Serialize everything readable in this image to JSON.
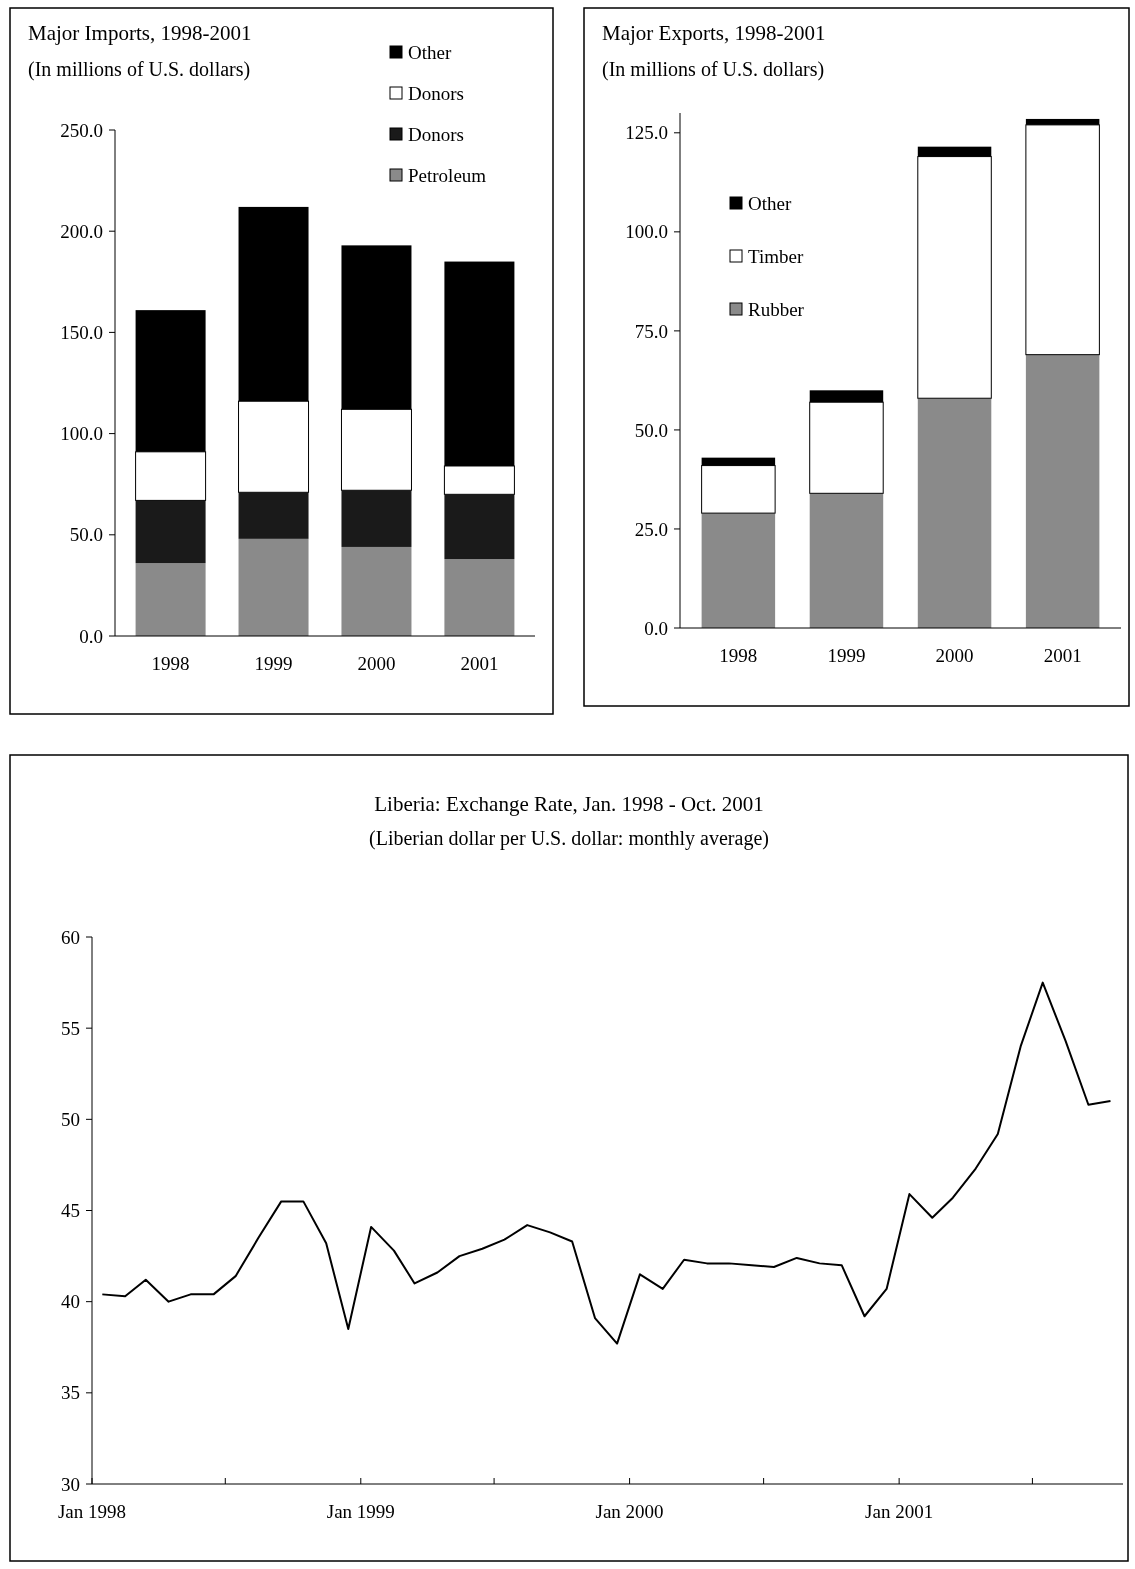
{
  "chart_data": [
    {
      "type": "bar",
      "title": "Major Imports, 1998-2001",
      "subtitle": "(In millions of U.S. dollars)",
      "categories": [
        "1998",
        "1999",
        "2000",
        "2001"
      ],
      "stacked": true,
      "legend": "top right",
      "series": [
        {
          "name": "Petroleum",
          "color": "#8a8a8a",
          "values": [
            36,
            48,
            44,
            38
          ]
        },
        {
          "name": "Donors",
          "color": "#1a1a1a",
          "values": [
            31,
            23,
            28,
            32
          ]
        },
        {
          "name": "Donors",
          "color": "#ffffff",
          "values": [
            24,
            45,
            40,
            14
          ]
        },
        {
          "name": "Other",
          "color": "#000000",
          "values": [
            70,
            96,
            81,
            101
          ]
        }
      ],
      "ylim": [
        0,
        250
      ],
      "yticks": [
        {
          "value": 0,
          "label": "0.0"
        },
        {
          "value": 50,
          "label": "50.0"
        },
        {
          "value": 100,
          "label": "100.0"
        },
        {
          "value": 150,
          "label": "150.0"
        },
        {
          "value": 200,
          "label": "200.0"
        },
        {
          "value": 250,
          "label": "250.0"
        }
      ]
    },
    {
      "type": "bar",
      "title": "Major Exports, 1998-2001",
      "subtitle": "(In millions of U.S. dollars)",
      "categories": [
        "1998",
        "1999",
        "2000",
        "2001"
      ],
      "stacked": true,
      "legend": "top left",
      "series": [
        {
          "name": "Rubber",
          "color": "#8a8a8a",
          "values": [
            29,
            34,
            58,
            69
          ]
        },
        {
          "name": "Timber",
          "color": "#ffffff",
          "values": [
            12,
            23,
            61,
            58
          ]
        },
        {
          "name": "Other",
          "color": "#000000",
          "values": [
            2,
            3,
            2.5,
            1.5
          ]
        }
      ],
      "ylim": [
        0,
        130
      ],
      "yticks": [
        {
          "value": 0,
          "label": "0.0"
        },
        {
          "value": 25,
          "label": "25.0"
        },
        {
          "value": 50,
          "label": "50.0"
        },
        {
          "value": 75,
          "label": "75.0"
        },
        {
          "value": 100,
          "label": "100.0"
        },
        {
          "value": 125,
          "label": "125.0"
        }
      ]
    },
    {
      "type": "line",
      "title": "Liberia: Exchange Rate, Jan. 1998 - Oct. 2001",
      "subtitle": "(Liberian dollar per U.S. dollar: monthly average)",
      "color": "#000000",
      "x": [
        "1998-01-15",
        "1998-02-15",
        "1998-03-15",
        "1998-04-15",
        "1998-05-15",
        "1998-06-15",
        "1998-07-15",
        "1998-08-15",
        "1998-09-15",
        "1998-10-15",
        "1998-11-15",
        "1998-12-15",
        "1999-01-15",
        "1999-02-15",
        "1999-03-15",
        "1999-04-15",
        "1999-05-15",
        "1999-06-15",
        "1999-07-15",
        "1999-08-15",
        "1999-09-15",
        "1999-10-15",
        "1999-11-15",
        "1999-12-15",
        "2000-01-15",
        "2000-02-15",
        "2000-03-15",
        "2000-04-15",
        "2000-05-15",
        "2000-06-15",
        "2000-07-15",
        "2000-08-15",
        "2000-09-15",
        "2000-10-15",
        "2000-11-15",
        "2000-12-15",
        "2001-01-15",
        "2001-02-15",
        "2001-03-15",
        "2001-04-15",
        "2001-05-15",
        "2001-06-15",
        "2001-07-15",
        "2001-08-15",
        "2001-09-15",
        "2001-10-15"
      ],
      "values": [
        40.4,
        40.3,
        41.2,
        40.0,
        40.4,
        40.4,
        41.4,
        43.5,
        45.5,
        45.5,
        43.2,
        38.5,
        44.1,
        42.8,
        41.0,
        41.6,
        42.5,
        42.9,
        43.4,
        44.2,
        43.8,
        43.3,
        39.1,
        37.7,
        41.5,
        40.7,
        42.3,
        42.1,
        42.1,
        42.0,
        41.9,
        42.4,
        42.1,
        42.0,
        39.2,
        40.7,
        45.9,
        44.6,
        45.7,
        47.3,
        49.2,
        54.0,
        57.5,
        54.3,
        50.8,
        51.0
      ],
      "xlim": [
        "1998-01-01",
        "2001-11-01"
      ],
      "xticks": [
        {
          "value": "1998-01-01",
          "label": "Jan 1998"
        },
        {
          "value": "1998-07-01",
          "label": null
        },
        {
          "value": "1999-01-01",
          "label": "Jan 1999"
        },
        {
          "value": "1999-07-01",
          "label": null
        },
        {
          "value": "2000-01-01",
          "label": "Jan 2000"
        },
        {
          "value": "2000-07-01",
          "label": null
        },
        {
          "value": "2001-01-01",
          "label": "Jan 2001"
        },
        {
          "value": "2001-07-01",
          "label": null
        }
      ],
      "ylim": [
        30,
        60
      ],
      "yticks": [
        30,
        35,
        40,
        45,
        50,
        55,
        60
      ]
    }
  ]
}
